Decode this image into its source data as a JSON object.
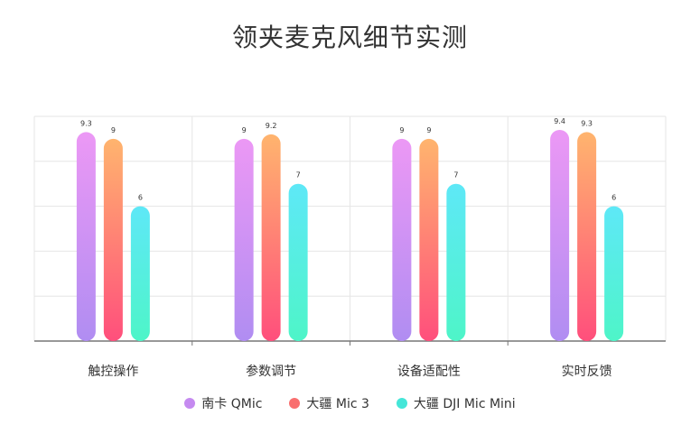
{
  "chart_data": {
    "type": "bar",
    "title": "领夹麦克风细节实测",
    "categories": [
      "触控操作",
      "参数调节",
      "设备适配性",
      "实时反馈"
    ],
    "ylim": [
      0,
      10
    ],
    "grid": true,
    "legend_position": "bottom",
    "series": [
      {
        "name": "南卡 QMic",
        "values": [
          9.3,
          9,
          9,
          9.4
        ],
        "color_top": "#ec98f5",
        "color_bottom": "#b08df2",
        "swatch": "#c58af0"
      },
      {
        "name": "大疆 Mic 3",
        "values": [
          9,
          9.2,
          9,
          9.3
        ],
        "color_top": "#ffb46e",
        "color_bottom": "#ff4f7c",
        "swatch": "#f96f6f"
      },
      {
        "name": "大疆 DJI Mic Mini",
        "values": [
          6,
          7,
          7,
          6
        ],
        "color_top": "#5ee8f7",
        "color_bottom": "#4ef5c8",
        "swatch": "#45e6d8"
      }
    ]
  }
}
